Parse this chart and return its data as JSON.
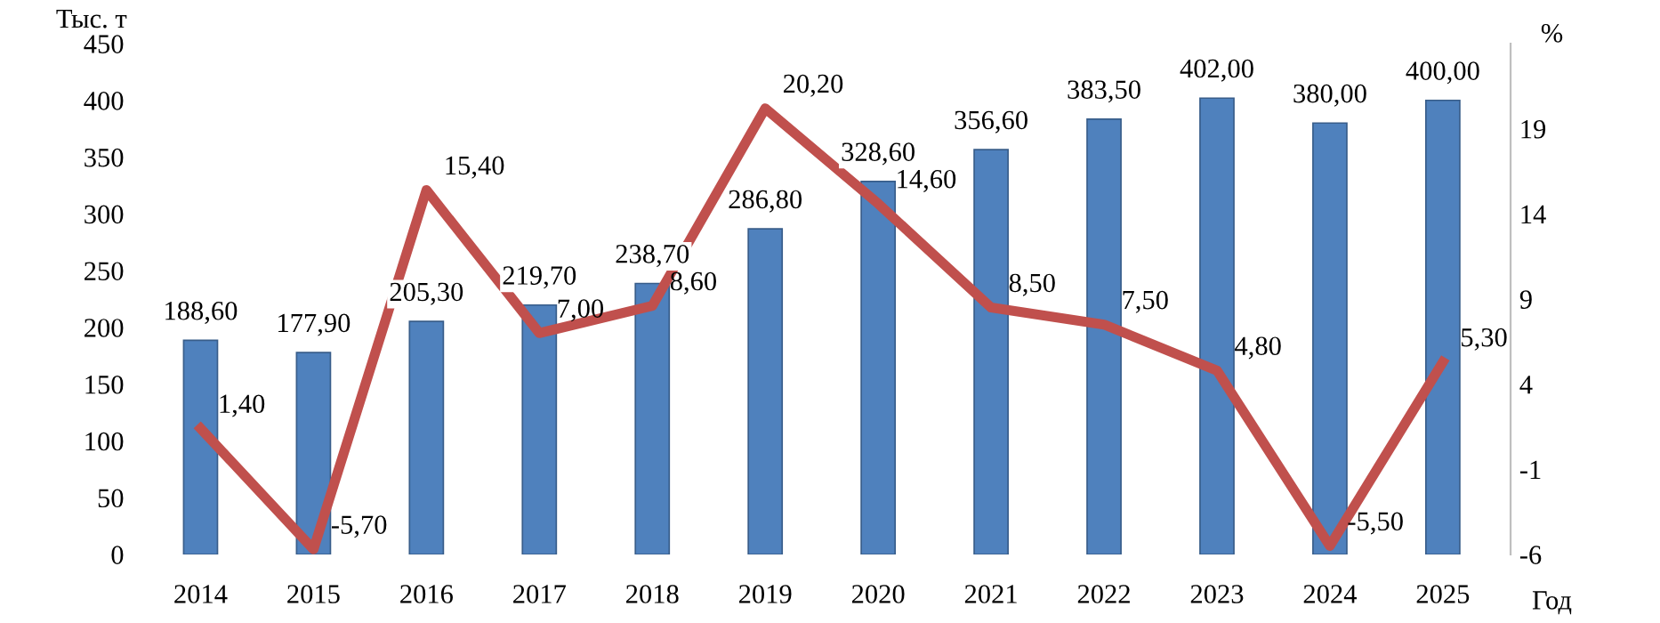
{
  "chart_data": {
    "type": "bar",
    "categories": [
      "2014",
      "2015",
      "2016",
      "2017",
      "2018",
      "2019",
      "2020",
      "2021",
      "2022",
      "2023",
      "2024",
      "2025"
    ],
    "xlabel": "Год",
    "ylabel": "Тыс. т",
    "y2label": "%",
    "series": [
      {
        "color": "#4f81bd",
        "values": [
          188.6,
          177.9,
          205.3,
          219.7,
          238.7,
          286.8,
          328.6,
          356.6,
          383.5,
          402.0,
          380.0,
          400.0
        ],
        "value_labels": [
          "188,60",
          "177,90",
          "205,30",
          "219,70",
          "238,70",
          "286,80",
          "328,60",
          "356,60",
          "383,50",
          "402,00",
          "380,00",
          "400,00"
        ]
      },
      {
        "type": "line",
        "axis": "y2",
        "color": "#c0504d",
        "values": [
          1.4,
          -5.7,
          15.4,
          7.0,
          8.6,
          20.2,
          14.6,
          8.5,
          7.5,
          4.8,
          -5.5,
          5.3
        ],
        "value_labels": [
          "1,40",
          "-5,70",
          "15,40",
          "7,00",
          "8,60",
          "20,20",
          "14,60",
          "8,50",
          "7,50",
          "4,80",
          "-5,50",
          "5,30"
        ]
      }
    ],
    "ylim": [
      0,
      450
    ],
    "yticks": [
      0,
      50,
      100,
      150,
      200,
      250,
      300,
      350,
      400,
      450
    ],
    "y2lim": [
      -6,
      24
    ],
    "y2ticks": [
      -6,
      -1,
      4,
      9,
      14,
      19
    ],
    "grid": false,
    "legend": false,
    "marker": "none",
    "line_style": "solid"
  }
}
